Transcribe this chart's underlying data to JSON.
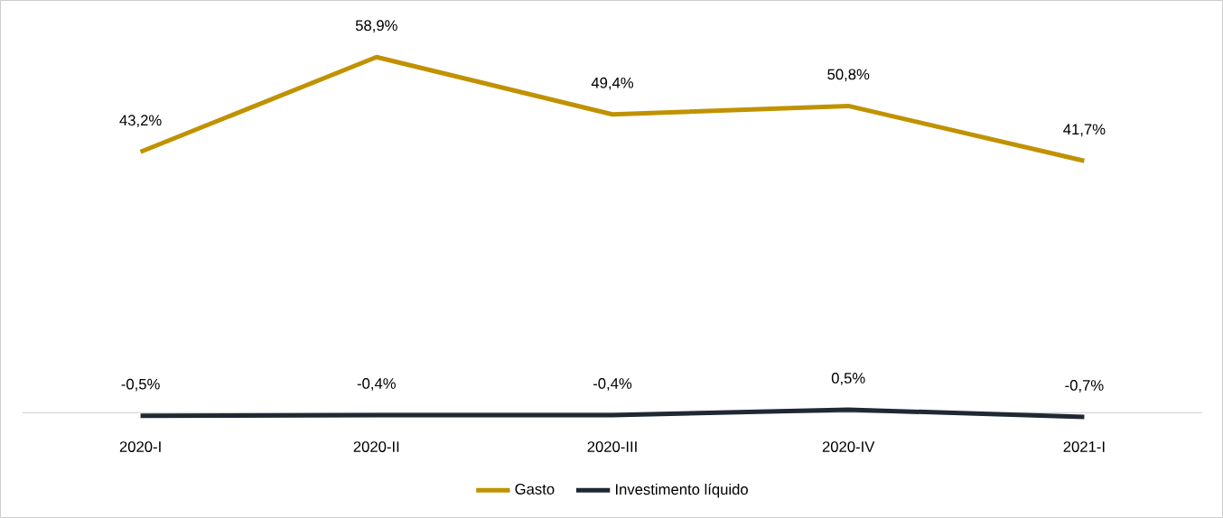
{
  "chart_data": {
    "type": "line",
    "categories": [
      "2020-I",
      "2020-II",
      "2020-III",
      "2020-IV",
      "2021-I"
    ],
    "legend": "bottom",
    "marker": "none",
    "line_style": "solid",
    "series": [
      {
        "name": "Gasto",
        "color": "#c09200",
        "values": [
          43.2,
          58.9,
          49.4,
          50.8,
          41.7
        ],
        "value_labels": [
          "43,2%",
          "58,9%",
          "49,4%",
          "50,8%",
          "41,7%"
        ]
      },
      {
        "name": "Investimento líquido",
        "color": "#1f2833",
        "values": [
          -0.5,
          -0.4,
          -0.4,
          0.5,
          -0.7
        ],
        "value_labels": [
          "-0,5%",
          "-0,4%",
          "-0,4%",
          "0,5%",
          "-0,7%"
        ]
      }
    ]
  }
}
